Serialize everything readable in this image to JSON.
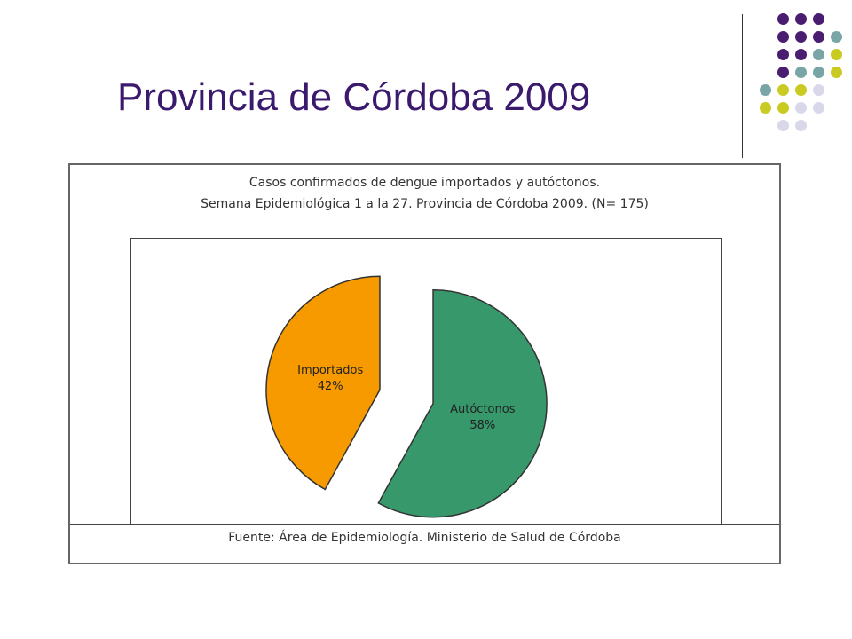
{
  "slide": {
    "title": "Provincia de Córdoba 2009"
  },
  "colors": {
    "title": "#3b1a6e",
    "importados": "#f79a00",
    "autoctonos": "#37996b",
    "dot_purple": "#4a1d70",
    "dot_teal": "#7aa5a6",
    "dot_olive": "#c9cb22",
    "dot_lavender": "#d8d8ea"
  },
  "decor": {
    "dot_rows": [
      [
        "purple",
        "purple",
        "purple"
      ],
      [
        "purple",
        "purple",
        "purple",
        "teal"
      ],
      [
        "purple",
        "purple",
        "teal",
        "olive"
      ],
      [
        "purple",
        "teal",
        "teal",
        "olive"
      ],
      [
        "teal",
        "olive",
        "olive",
        "lavender"
      ],
      [
        "olive",
        "olive",
        "lavender",
        "lavender"
      ],
      [
        "lavender",
        "lavender"
      ]
    ]
  },
  "chart_data": {
    "type": "pie",
    "title": "Casos confirmados de dengue importados y autóctonos.",
    "subtitle": "Semana Epidemiológica 1 a la 27. Provincia de Córdoba 2009. (N= 175)",
    "slices": [
      {
        "name": "Importados",
        "value": 42,
        "label_value": "42%",
        "exploded": true
      },
      {
        "name": "Autóctonos",
        "value": 58,
        "label_value": "58%",
        "exploded": true
      }
    ],
    "source": "Fuente: Área de Epidemiología. Ministerio de Salud de Córdoba"
  }
}
